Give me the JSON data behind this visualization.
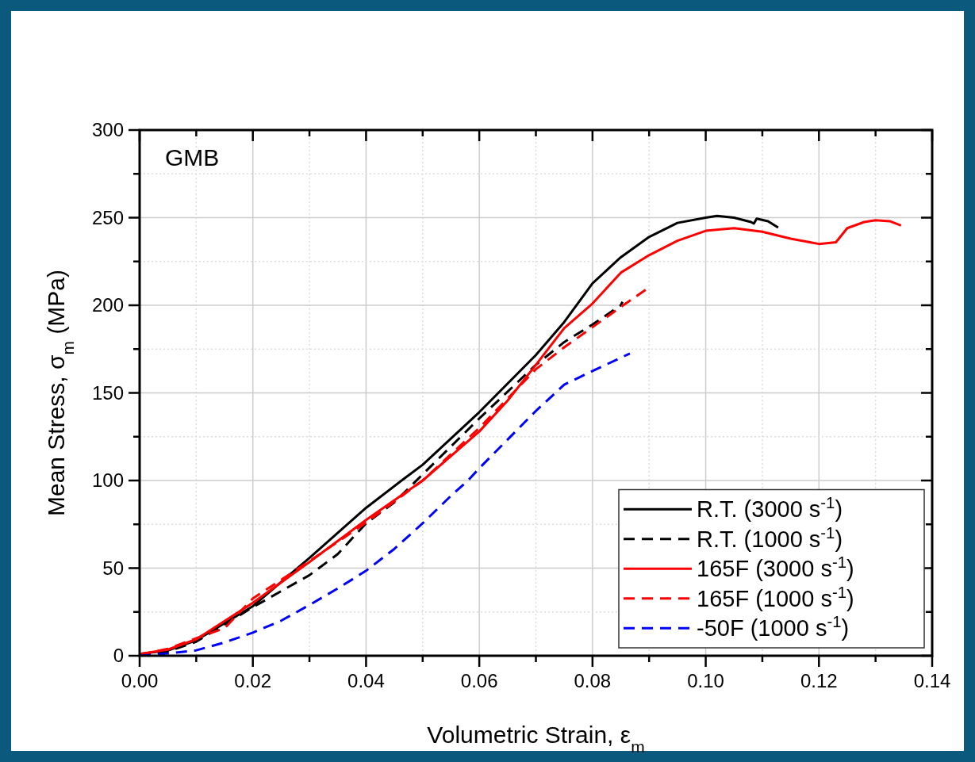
{
  "chart_data": {
    "type": "line",
    "xlabel": "Volumetric Strain, ε$_{m}$",
    "ylabel": "Mean Stress, σ$_{m}$ (MPa)",
    "annotations": [
      "GMB"
    ],
    "xlim": [
      0,
      0.14
    ],
    "ylim": [
      0,
      300
    ],
    "xticks": [
      {
        "value": 0,
        "label": "0.00"
      },
      {
        "value": 0.01,
        "label": null
      },
      {
        "value": 0.02,
        "label": "0.02"
      },
      {
        "value": 0.03,
        "label": null
      },
      {
        "value": 0.04,
        "label": "0.04"
      },
      {
        "value": 0.05,
        "label": null
      },
      {
        "value": 0.06,
        "label": "0.06"
      },
      {
        "value": 0.07,
        "label": null
      },
      {
        "value": 0.08,
        "label": "0.08"
      },
      {
        "value": 0.09,
        "label": null
      },
      {
        "value": 0.1,
        "label": "0.10"
      },
      {
        "value": 0.11,
        "label": null
      },
      {
        "value": 0.12,
        "label": "0.12"
      },
      {
        "value": 0.13,
        "label": null
      },
      {
        "value": 0.14,
        "label": "0.14"
      }
    ],
    "yticks": [
      0,
      {
        "value": 25,
        "label": null
      },
      50,
      {
        "value": 75,
        "label": null
      },
      100,
      {
        "value": 125,
        "label": null
      },
      150,
      {
        "value": 175,
        "label": null
      },
      200,
      {
        "value": 225,
        "label": null
      },
      250,
      {
        "value": 275,
        "label": null
      },
      300
    ],
    "grid": true,
    "legend": "bottom right",
    "marker": "none",
    "series": [
      {
        "name": "R.T. (3000 s$^{-1}$)",
        "color": "#000000",
        "line_style": "solid",
        "x": [
          0,
          0.005,
          0.01,
          0.02,
          0.03,
          0.04,
          0.0467,
          0.05,
          0.06,
          0.07,
          0.075,
          0.08,
          0.085,
          0.09,
          0.095,
          0.1,
          0.102,
          0.105,
          0.108,
          0.1085,
          0.109,
          0.111,
          0.1128
        ],
        "values": [
          1,
          3,
          8.8,
          28.3,
          55.8,
          84.4,
          101,
          109,
          139,
          171.6,
          190.4,
          212.5,
          227.4,
          239,
          247,
          250,
          251,
          250,
          247.5,
          246.6,
          249.4,
          248,
          244.3
        ]
      },
      {
        "name": "R.T. (1000 s$^{-1}$)",
        "color": "#000000",
        "line_style": "dashed",
        "x": [
          0,
          0.005,
          0.01,
          0.02,
          0.03,
          0.035,
          0.04,
          0.045,
          0.05,
          0.06,
          0.07,
          0.075,
          0.08,
          0.085,
          0.0853
        ],
        "values": [
          0,
          2.5,
          8,
          27.7,
          46,
          58,
          75.6,
          87.5,
          103.5,
          135.4,
          166,
          179,
          189,
          200,
          202
        ]
      },
      {
        "name": "165F (3000 s$^{-1}$)",
        "color": "#ff0000",
        "line_style": "solid",
        "x": [
          0,
          0.005,
          0.01,
          0.02,
          0.03,
          0.04,
          0.05,
          0.06,
          0.065,
          0.07,
          0.075,
          0.08,
          0.085,
          0.09,
          0.095,
          0.1,
          0.105,
          0.11,
          0.115,
          0.12,
          0.123,
          0.125,
          0.128,
          0.13,
          0.1325,
          0.1345
        ],
        "values": [
          1,
          3.5,
          9.4,
          30.2,
          53.5,
          77.5,
          100,
          128,
          145.6,
          166,
          186.9,
          201,
          218.6,
          228.6,
          236.8,
          242.5,
          244,
          242,
          238,
          235,
          236,
          244,
          247.5,
          248.5,
          248,
          245.5
        ]
      },
      {
        "name": "165F (1000 s$^{-1}$)",
        "color": "#ff0000",
        "line_style": "dashed",
        "x": [
          0,
          0.005,
          0.01,
          0.015,
          0.02,
          0.03,
          0.04,
          0.05,
          0.06,
          0.07,
          0.075,
          0.08,
          0.085,
          0.0898
        ],
        "values": [
          0.5,
          4,
          10,
          15.7,
          32.7,
          54,
          76,
          100,
          130,
          163.5,
          176,
          187.5,
          199,
          209.8
        ]
      },
      {
        "name": "-50F (1000 s$^{-1}$)",
        "color": "#0000ff",
        "line_style": "dashed",
        "x": [
          0,
          0.005,
          0.01,
          0.015,
          0.02,
          0.025,
          0.03,
          0.035,
          0.04,
          0.045,
          0.05,
          0.055,
          0.058,
          0.06,
          0.07,
          0.075,
          0.08,
          0.0866
        ],
        "values": [
          0,
          1.3,
          3.1,
          7.6,
          13.2,
          20,
          29,
          38.4,
          48.5,
          61,
          75.6,
          91.3,
          100,
          107,
          139.7,
          154.7,
          162.5,
          172.5
        ]
      }
    ]
  }
}
